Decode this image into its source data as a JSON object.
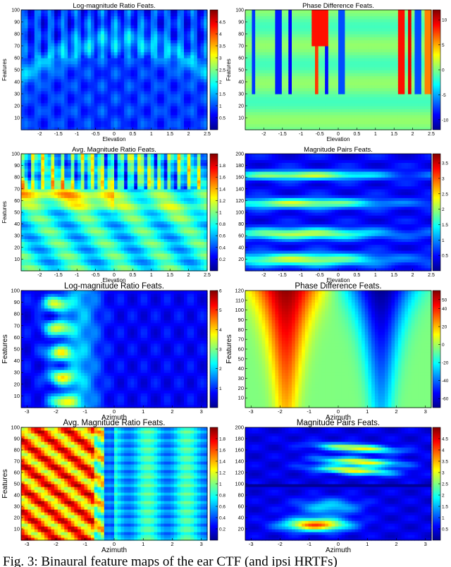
{
  "caption": "Fig. 3: Binaural feature maps of the ear CTF (and ipsi HRTFs)",
  "colorbar_stops": [
    "#00008f",
    "#0000ff",
    "#0080ff",
    "#00ffff",
    "#80ff80",
    "#ffff00",
    "#ff8000",
    "#ff0000",
    "#800000"
  ],
  "chart_data": [
    {
      "type": "heatmap",
      "title": "Log-magnitude Ratio Feats.",
      "xlabel": "Elevation",
      "ylabel": "Features",
      "xlim": [
        -2.5,
        2.5
      ],
      "ylim": [
        0,
        100
      ],
      "xticks": [
        "-2",
        "-1.5",
        "-1",
        "-0.5",
        "0",
        "0.5",
        "1",
        "1.5",
        "2",
        "2.5"
      ],
      "yticks": [
        "10",
        "20",
        "30",
        "40",
        "50",
        "60",
        "70",
        "80",
        "90",
        "100"
      ],
      "colorbar": {
        "range": [
          0,
          5
        ],
        "ticks": [
          "0.5",
          "1",
          "1.5",
          "2",
          "2.5",
          "3",
          "3.5",
          "4",
          "4.5"
        ]
      }
    },
    {
      "type": "heatmap",
      "title": "Phase Difference Feats.",
      "xlabel": "Elevation",
      "ylabel": "Features",
      "xlim": [
        -2.5,
        2.5
      ],
      "ylim": [
        0,
        100
      ],
      "xticks": [
        "-2",
        "-1.5",
        "-1",
        "-0.5",
        "0",
        "0.5",
        "1",
        "1.5",
        "2",
        "2.5"
      ],
      "yticks": [
        "10",
        "20",
        "30",
        "40",
        "50",
        "60",
        "70",
        "80",
        "90",
        "100"
      ],
      "colorbar": {
        "range": [
          -12,
          12
        ],
        "ticks": [
          "-10",
          "-5",
          "0",
          "5",
          "10"
        ]
      }
    },
    {
      "type": "heatmap",
      "title": "Avg. Magnitude Ratio Feats.",
      "xlabel": "Elevation",
      "ylabel": "Features",
      "xlim": [
        -2.5,
        2.5
      ],
      "ylim": [
        0,
        100
      ],
      "xticks": [
        "-2",
        "-1.5",
        "-1",
        "-0.5",
        "0",
        "0.5",
        "1",
        "1.5",
        "2",
        "2.5"
      ],
      "yticks": [
        "10",
        "20",
        "30",
        "40",
        "50",
        "60",
        "70",
        "80",
        "90",
        "100"
      ],
      "colorbar": {
        "range": [
          0,
          2
        ],
        "ticks": [
          "0.2",
          "0.4",
          "0.6",
          "0.8",
          "1",
          "1.2",
          "1.4",
          "1.6",
          "1.8"
        ]
      }
    },
    {
      "type": "heatmap",
      "title": "Magnitude Pairs Feats.",
      "xlabel": "Elevation",
      "ylabel": "",
      "xlim": [
        -2.5,
        2.5
      ],
      "ylim": [
        0,
        200
      ],
      "xticks": [
        "-2",
        "-1.5",
        "-1",
        "-0.5",
        "0",
        "0.5",
        "1",
        "1.5",
        "2",
        "2.5"
      ],
      "yticks": [
        "20",
        "40",
        "60",
        "80",
        "100",
        "120",
        "140",
        "160",
        "180",
        "200"
      ],
      "colorbar": {
        "range": [
          0,
          3.8
        ],
        "ticks": [
          "0.5",
          "1",
          "1.5",
          "2",
          "2.5",
          "3",
          "3.5"
        ]
      }
    },
    {
      "type": "heatmap",
      "title": "Log-magnitude Ratio Feats.",
      "xlabel": "Azimuth",
      "ylabel": "Features",
      "xlim": [
        -3.2,
        3.2
      ],
      "ylim": [
        0,
        100
      ],
      "xticks": [
        "-3",
        "-2",
        "-1",
        "0",
        "1",
        "2",
        "3"
      ],
      "yticks": [
        "10",
        "20",
        "30",
        "40",
        "50",
        "60",
        "70",
        "80",
        "90",
        "100"
      ],
      "colorbar": {
        "range": [
          0,
          6
        ],
        "ticks": [
          "1",
          "2",
          "3",
          "4",
          "5",
          "6"
        ]
      }
    },
    {
      "type": "heatmap",
      "title": "Phase Difference Feats.",
      "xlabel": "Azimuth",
      "ylabel": "Features",
      "xlim": [
        -3.2,
        3.2
      ],
      "ylim": [
        0,
        120
      ],
      "xticks": [
        "-3",
        "-2",
        "-1",
        "0",
        "1",
        "2",
        "3"
      ],
      "yticks": [
        "10",
        "20",
        "30",
        "40",
        "50",
        "60",
        "70",
        "80",
        "90",
        "100",
        "110",
        "120"
      ],
      "colorbar": {
        "range": [
          -70,
          60
        ],
        "ticks": [
          "-60",
          "-40",
          "-20",
          "0",
          "20",
          "40",
          "50"
        ]
      }
    },
    {
      "type": "heatmap",
      "title": "Avg. Magnitude Ratio Feats.",
      "xlabel": "Azimuth",
      "ylabel": "Features",
      "xlim": [
        -3.2,
        3.2
      ],
      "ylim": [
        0,
        100
      ],
      "xticks": [
        "-3",
        "-2",
        "-1",
        "0",
        "1",
        "2",
        "3"
      ],
      "yticks": [
        "10",
        "20",
        "30",
        "40",
        "50",
        "60",
        "70",
        "80",
        "90",
        "100"
      ],
      "colorbar": {
        "range": [
          0,
          2
        ],
        "ticks": [
          "0.2",
          "0.4",
          "0.6",
          "0.8",
          "1",
          "1.2",
          "1.4",
          "1.6",
          "1.8"
        ]
      }
    },
    {
      "type": "heatmap",
      "title": "Magnitude Pairs Feats.",
      "xlabel": "Azimuth",
      "ylabel": "",
      "xlim": [
        -3.2,
        3.2
      ],
      "ylim": [
        0,
        200
      ],
      "xticks": [
        "-3",
        "-2",
        "-1",
        "0",
        "1",
        "2",
        "3"
      ],
      "yticks": [
        "20",
        "40",
        "60",
        "80",
        "100",
        "120",
        "140",
        "160",
        "180",
        "200"
      ],
      "colorbar": {
        "range": [
          0,
          5
        ],
        "ticks": [
          "0.5",
          "1",
          "1.5",
          "2",
          "2.5",
          "3",
          "3.5",
          "4",
          "4.5"
        ]
      }
    }
  ]
}
